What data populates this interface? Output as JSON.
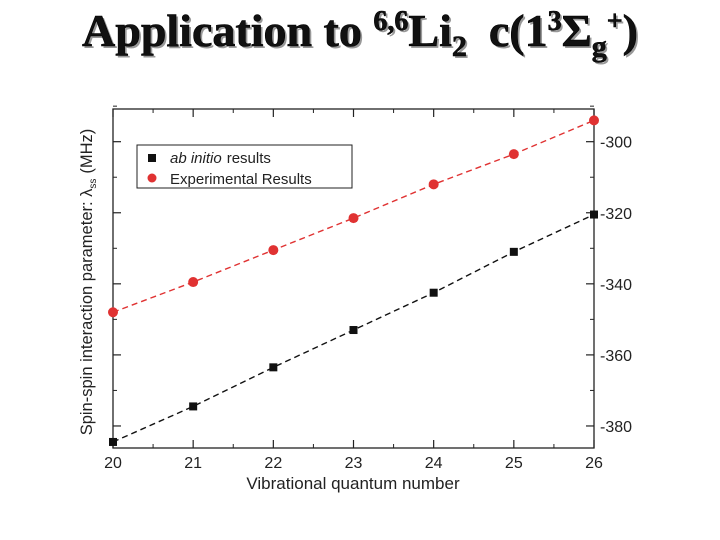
{
  "title": {
    "prefix": "Application to",
    "isotope": "6,6",
    "element": "Li",
    "subscript": "2",
    "state_open": "c(1",
    "state_mult": "3",
    "state_sym": "Σ",
    "state_sub": "g",
    "state_sup": "+",
    "state_close": ")"
  },
  "chart_data": {
    "type": "line",
    "xlabel": "Vibrational quantum number",
    "ylabel": "Spin-spin interaction parameter: λ",
    "ylabel_sub": "ss",
    "ylabel_unit": "(MHz)",
    "x": [
      20,
      21,
      22,
      23,
      24,
      25,
      26
    ],
    "xlim": [
      20,
      26
    ],
    "ylim": [
      -385,
      -290
    ],
    "yticks": [
      -300,
      -320,
      -340,
      -360,
      -380
    ],
    "y_axis_side": "right",
    "legend_placement": "top-left",
    "grid": false,
    "series": [
      {
        "name_italic": "ab initio",
        "name_rest": "results",
        "marker": "square",
        "color": "#111111",
        "values": [
          -384.5,
          -374.5,
          -363.5,
          -353,
          -342.5,
          -331,
          -320.5
        ]
      },
      {
        "name": "Experimental Results",
        "marker": "circle",
        "color": "#e03232",
        "values": [
          -348,
          -339.5,
          -330.5,
          -321.5,
          -312,
          -303.5,
          -294
        ]
      }
    ]
  }
}
